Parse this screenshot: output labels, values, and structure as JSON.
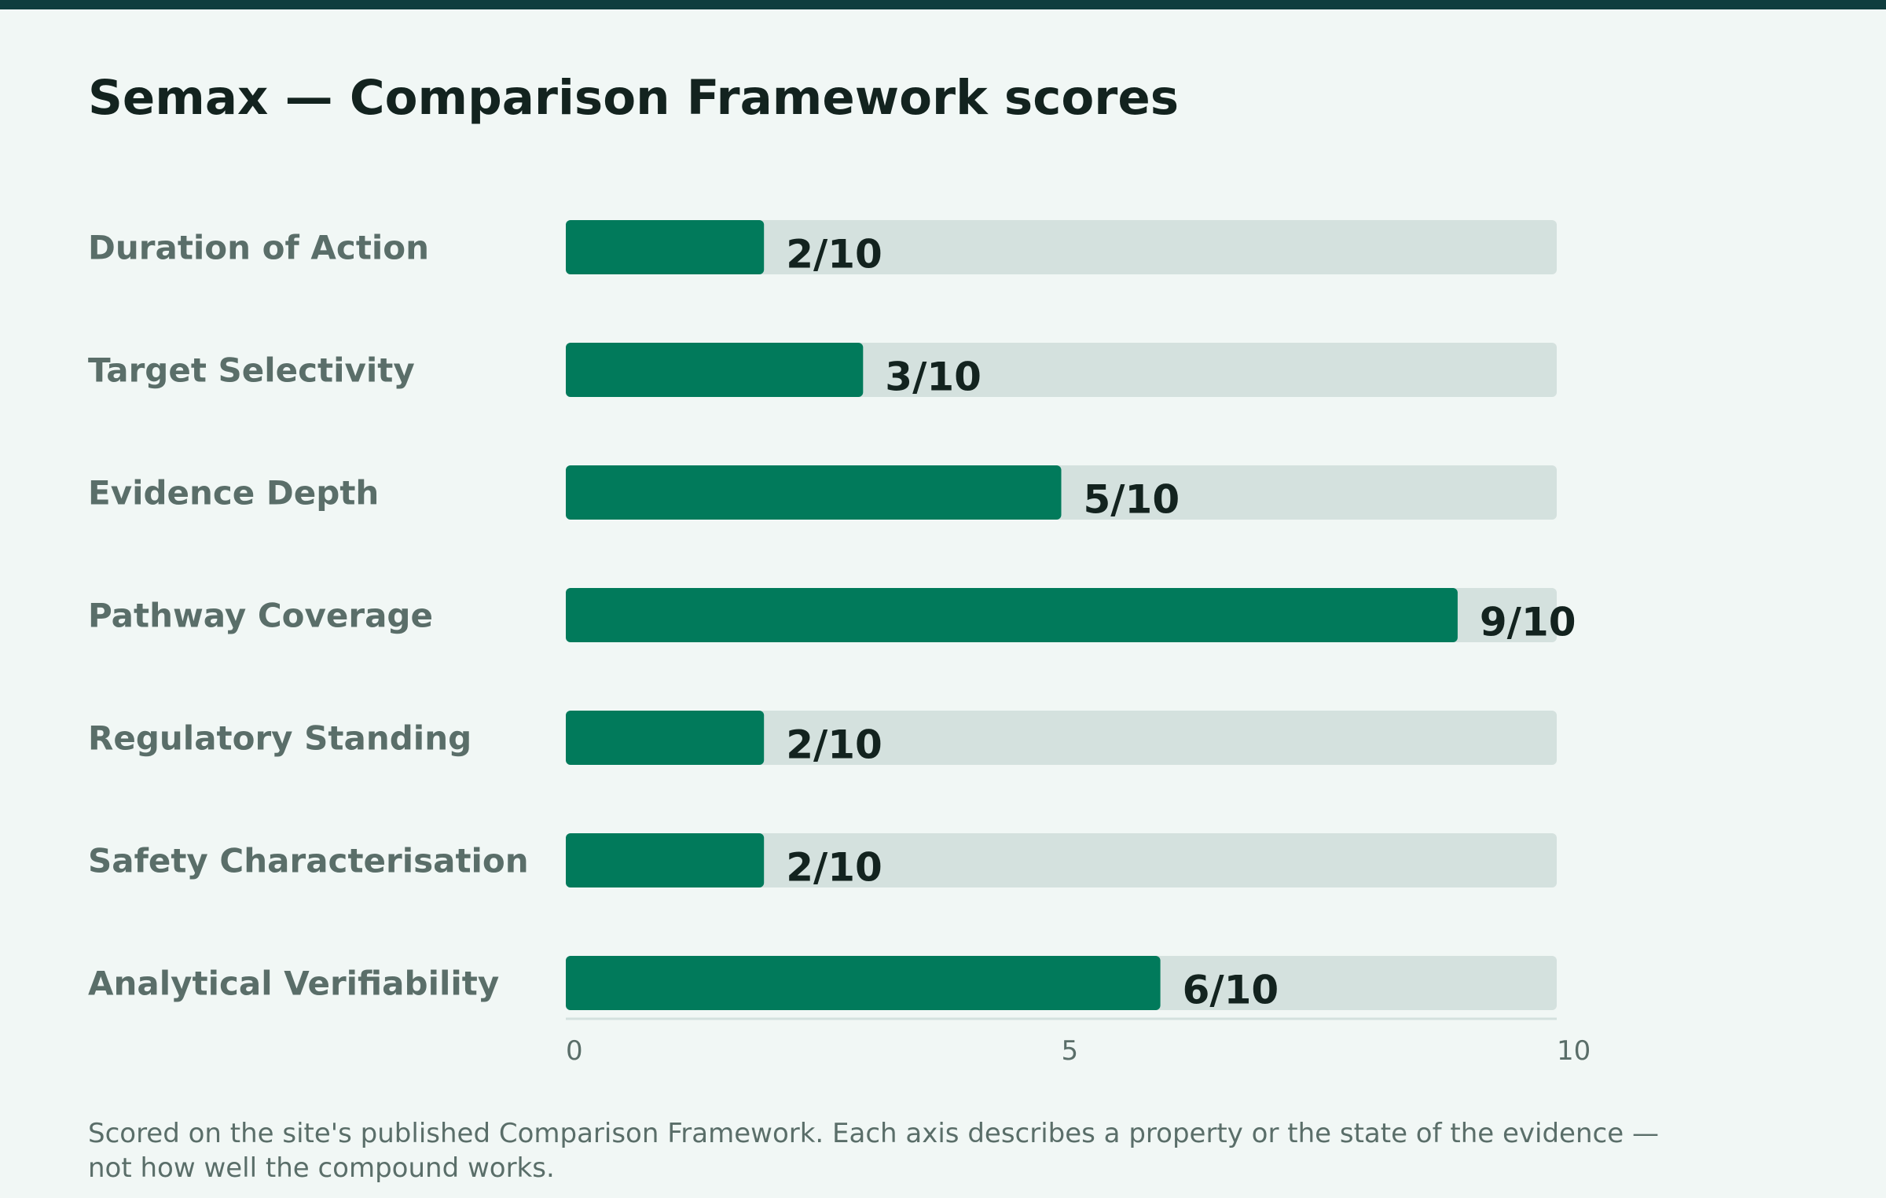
{
  "chart_data": {
    "type": "bar",
    "orientation": "horizontal",
    "title": "Semax — Comparison Framework scores",
    "categories": [
      "Duration of Action",
      "Target Selectivity",
      "Evidence Depth",
      "Pathway Coverage",
      "Regulatory Standing",
      "Safety Characterisation",
      "Analytical Verifiability"
    ],
    "values": [
      2,
      3,
      5,
      9,
      2,
      2,
      6
    ],
    "value_labels": [
      "2/10",
      "3/10",
      "5/10",
      "9/10",
      "2/10",
      "2/10",
      "6/10"
    ],
    "xlim": [
      0,
      10
    ],
    "xticks": [
      0,
      5,
      10
    ],
    "xtick_labels": [
      "0",
      "5",
      "10"
    ],
    "grid": false,
    "colors": {
      "bar": "#017a5b",
      "track": "#d4e1de",
      "axis": "#d4e1de",
      "top_bar": "#0f3d3e"
    }
  },
  "footnote": "Scored on the site's published Comparison Framework. Each axis describes a property or the state of the evidence — not how well the compound works."
}
